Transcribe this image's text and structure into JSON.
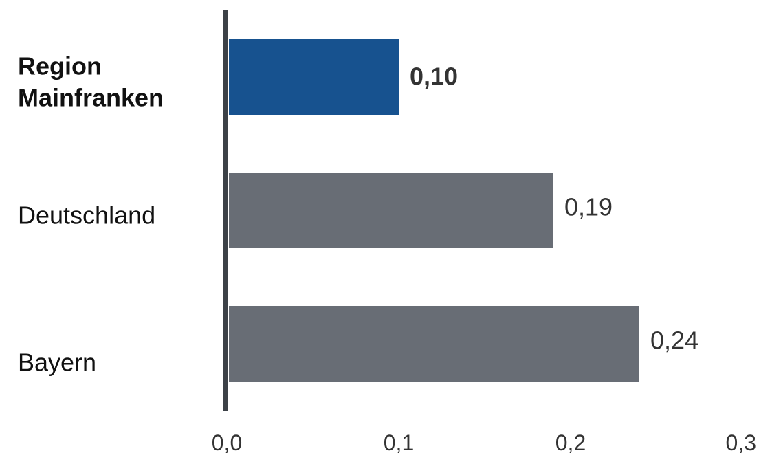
{
  "chart_data": {
    "type": "bar",
    "orientation": "horizontal",
    "categories": [
      "Region Mainfranken",
      "Deutschland",
      "Bayern"
    ],
    "category_lines": [
      [
        "Region",
        "Mainfranken"
      ],
      [
        "Deutschland"
      ],
      [
        "Bayern"
      ]
    ],
    "values": [
      0.1,
      0.19,
      0.24
    ],
    "value_labels": [
      "0,10",
      "0,19",
      "0,24"
    ],
    "highlight_index": 0,
    "xlim": [
      0,
      0.3
    ],
    "xticks": [
      0,
      0.1,
      0.2,
      0.3
    ],
    "xtick_labels": [
      "0,0",
      "0,1",
      "0,2",
      "0,3"
    ],
    "title": "",
    "xlabel": "",
    "ylabel": "",
    "grid": false,
    "legend": "none",
    "colors": {
      "highlight": "#17528f",
      "default": "#686d75",
      "axis": "#3c4147"
    }
  }
}
